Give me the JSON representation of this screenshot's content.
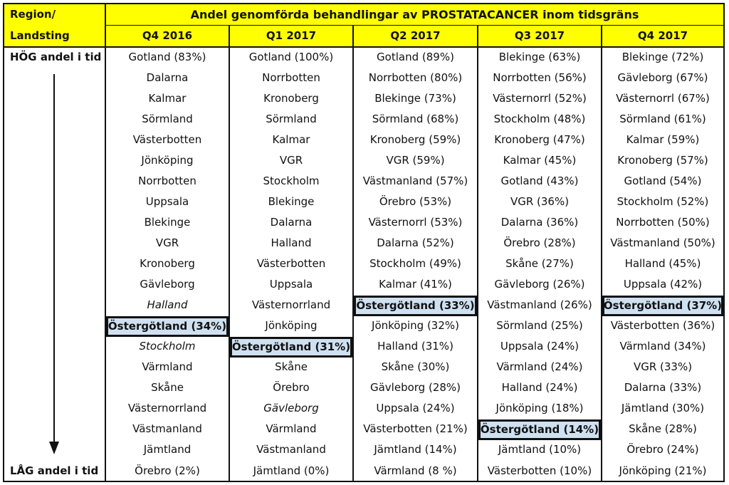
{
  "chart_data": {
    "type": "table",
    "title": "Andel genomförda behandlingar av PROSTATACANCER inom tidsgräns",
    "region_header_line1": "Region/",
    "region_header_line2": "Landsting",
    "side_top_label": "HÖG andel i tid",
    "side_bottom_label": "LÅG andel i tid",
    "highlight_color": "#cfe1f1",
    "header_color": "#ffff00",
    "columns": [
      {
        "label": "Q4 2016",
        "rows": [
          {
            "text": "Gotland (83%)"
          },
          {
            "text": "Dalarna"
          },
          {
            "text": "Kalmar"
          },
          {
            "text": "Sörmland"
          },
          {
            "text": "Västerbotten"
          },
          {
            "text": "Jönköping"
          },
          {
            "text": "Norrbotten"
          },
          {
            "text": "Uppsala"
          },
          {
            "text": "Blekinge"
          },
          {
            "text": "VGR"
          },
          {
            "text": "Kronoberg"
          },
          {
            "text": "Gävleborg"
          },
          {
            "text": "Halland",
            "italic": true
          },
          {
            "text": "Östergötland (34%)",
            "highlight": true
          },
          {
            "text": "Stockholm",
            "italic": true
          },
          {
            "text": "Värmland"
          },
          {
            "text": "Skåne"
          },
          {
            "text": "Västernorrland"
          },
          {
            "text": "Västmanland"
          },
          {
            "text": "Jämtland"
          },
          {
            "text": "Örebro (2%)"
          }
        ]
      },
      {
        "label": "Q1 2017",
        "rows": [
          {
            "text": "Gotland (100%)"
          },
          {
            "text": "Norrbotten"
          },
          {
            "text": "Kronoberg"
          },
          {
            "text": "Sörmland"
          },
          {
            "text": "Kalmar"
          },
          {
            "text": "VGR"
          },
          {
            "text": "Stockholm"
          },
          {
            "text": "Blekinge"
          },
          {
            "text": "Dalarna"
          },
          {
            "text": "Halland"
          },
          {
            "text": "Västerbotten"
          },
          {
            "text": "Uppsala"
          },
          {
            "text": "Västernorrland"
          },
          {
            "text": "Jönköping"
          },
          {
            "text": "Östergötland (31%)",
            "highlight": true
          },
          {
            "text": "Skåne"
          },
          {
            "text": "Örebro"
          },
          {
            "text": "Gävleborg",
            "italic": true
          },
          {
            "text": "Värmland"
          },
          {
            "text": "Västmanland"
          },
          {
            "text": "Jämtland (0%)"
          }
        ]
      },
      {
        "label": "Q2 2017",
        "rows": [
          {
            "text": "Gotland (89%)"
          },
          {
            "text": "Norrbotten (80%)"
          },
          {
            "text": "Blekinge (73%)"
          },
          {
            "text": "Sörmland (68%)"
          },
          {
            "text": "Kronoberg (59%)"
          },
          {
            "text": "VGR (59%)"
          },
          {
            "text": "Västmanland (57%)"
          },
          {
            "text": "Örebro (53%)"
          },
          {
            "text": "Västernorrl (53%)"
          },
          {
            "text": "Dalarna (52%)"
          },
          {
            "text": "Stockholm (49%)"
          },
          {
            "text": "Kalmar (41%)"
          },
          {
            "text": "Östergötland (33%)",
            "highlight": true
          },
          {
            "text": "Jönköping (32%)"
          },
          {
            "text": "Halland (31%)"
          },
          {
            "text": "Skåne (30%)"
          },
          {
            "text": "Gävleborg (28%)"
          },
          {
            "text": "Uppsala (24%)"
          },
          {
            "text": "Västerbotten (21%)"
          },
          {
            "text": "Jämtland (14%)"
          },
          {
            "text": "Värmland (8 %)"
          }
        ]
      },
      {
        "label": "Q3 2017",
        "rows": [
          {
            "text": "Blekinge (63%)"
          },
          {
            "text": "Norrbotten (56%)"
          },
          {
            "text": "Västernorrl (52%)"
          },
          {
            "text": "Stockholm (48%)"
          },
          {
            "text": "Kronoberg (47%)"
          },
          {
            "text": "Kalmar (45%)"
          },
          {
            "text": "Gotland (43%)"
          },
          {
            "text": "VGR (36%)"
          },
          {
            "text": "Dalarna (36%)"
          },
          {
            "text": "Örebro (28%)"
          },
          {
            "text": "Skåne (27%)"
          },
          {
            "text": "Gävleborg (26%)"
          },
          {
            "text": "Västmanland (26%)"
          },
          {
            "text": "Sörmland (25%)"
          },
          {
            "text": "Uppsala (24%)"
          },
          {
            "text": "Värmland (24%)"
          },
          {
            "text": "Halland (24%)"
          },
          {
            "text": "Jönköping (18%)"
          },
          {
            "text": "Östergötland (14%)",
            "highlight": true
          },
          {
            "text": "Jämtland (10%)"
          },
          {
            "text": "Västerbotten (10%)"
          }
        ]
      },
      {
        "label": "Q4 2017",
        "rows": [
          {
            "text": "Blekinge (72%)"
          },
          {
            "text": "Gävleborg (67%)"
          },
          {
            "text": "Västernorrl (67%)"
          },
          {
            "text": "Sörmland (61%)"
          },
          {
            "text": "Kalmar (59%)"
          },
          {
            "text": "Kronoberg (57%)"
          },
          {
            "text": "Gotland (54%)"
          },
          {
            "text": "Stockholm (52%)"
          },
          {
            "text": "Norrbotten (50%)"
          },
          {
            "text": "Västmanland (50%)"
          },
          {
            "text": "Halland (45%)"
          },
          {
            "text": "Uppsala (42%)"
          },
          {
            "text": "Östergötland (37%)",
            "highlight": true
          },
          {
            "text": "Västerbotten (36%)"
          },
          {
            "text": "Värmland (34%)"
          },
          {
            "text": "VGR (33%)"
          },
          {
            "text": "Dalarna (33%)"
          },
          {
            "text": "Jämtland (30%)"
          },
          {
            "text": "Skåne (28%)"
          },
          {
            "text": "Örebro (24%)"
          },
          {
            "text": "Jönköping (21%)"
          }
        ]
      }
    ]
  }
}
